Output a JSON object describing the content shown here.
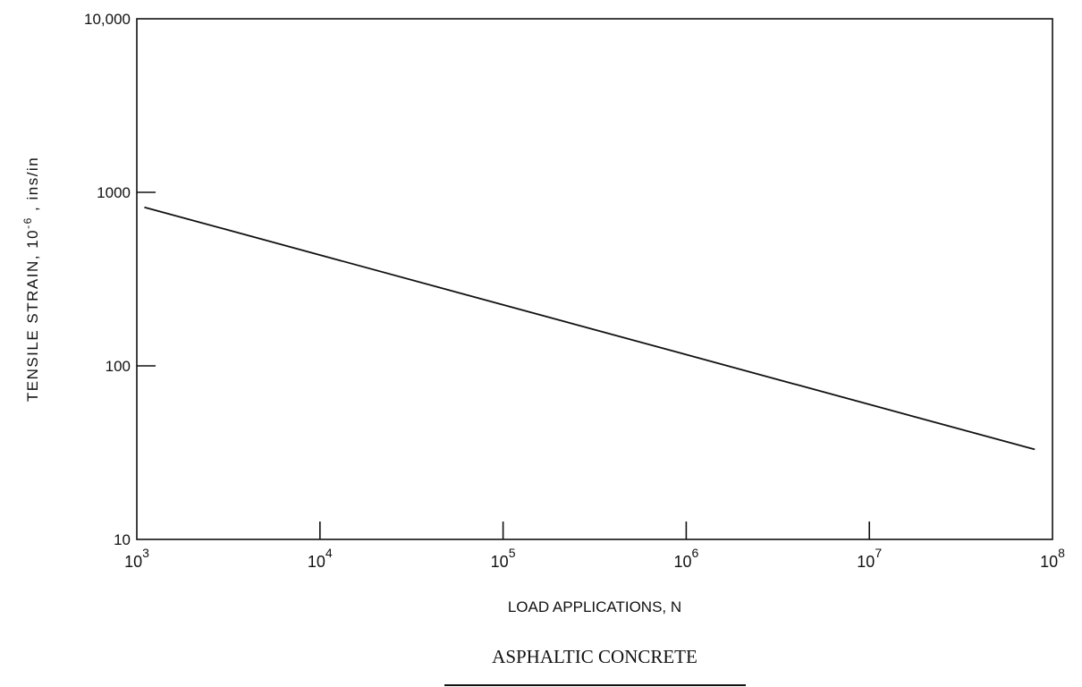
{
  "chart_data": {
    "type": "line",
    "title": "",
    "xlabel": "LOAD APPLICATIONS, N",
    "ylabel": "TENSILE STRAIN, 10-6 , ins/in",
    "ylabel_parts": {
      "main": "TENSILE STRAIN, 10",
      "exp": "-6",
      "unit": " , ins/in"
    },
    "caption": "ASPHALTIC CONCRETE",
    "x_scale": "log",
    "y_scale": "log",
    "xlim": [
      1000,
      100000000
    ],
    "ylim": [
      10,
      10000
    ],
    "x_ticks": [
      {
        "value": 1000,
        "base": "10",
        "exp": "3"
      },
      {
        "value": 10000,
        "base": "10",
        "exp": "4"
      },
      {
        "value": 100000,
        "base": "10",
        "exp": "5"
      },
      {
        "value": 1000000,
        "base": "10",
        "exp": "6"
      },
      {
        "value": 10000000,
        "base": "10",
        "exp": "7"
      },
      {
        "value": 100000000,
        "base": "10",
        "exp": "8"
      }
    ],
    "y_ticks": [
      {
        "value": 10,
        "label": "10"
      },
      {
        "value": 100,
        "label": "100"
      },
      {
        "value": 1000,
        "label": "1000"
      },
      {
        "value": 10000,
        "label": "10,000"
      }
    ],
    "grid": false,
    "series": [
      {
        "x": [
          1100,
          80000000
        ],
        "y": [
          820,
          33
        ],
        "color": "#111111"
      }
    ]
  }
}
